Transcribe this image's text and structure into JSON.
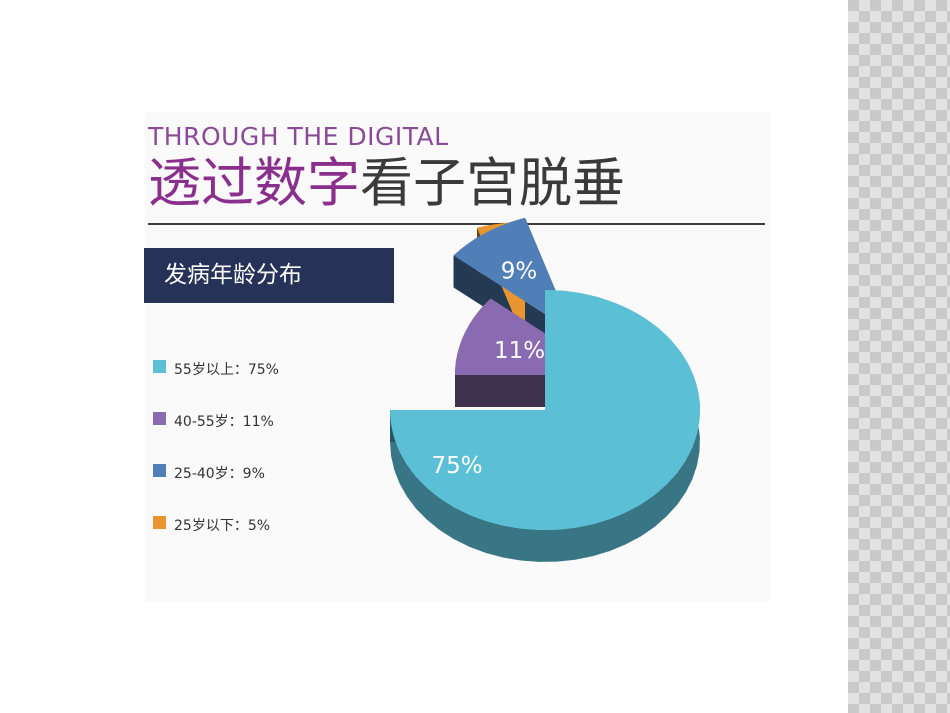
{
  "header": {
    "kicker": "THROUGH THE DIGITAL",
    "title_accent": "透过数字",
    "title_rest": "看子宫脱垂"
  },
  "subtitle": "发病年龄分布",
  "legend": [
    {
      "label": "55岁以上：75%",
      "color": "#5bbfd6"
    },
    {
      "label": "40-55岁：11%",
      "color": "#8a6ab0"
    },
    {
      "label": "25-40岁：9%",
      "color": "#4f7fb6"
    },
    {
      "label": "25岁以下：5%",
      "color": "#e8952f"
    }
  ],
  "chart_data": {
    "type": "pie",
    "title": "发病年龄分布",
    "categories": [
      "55岁以上",
      "40-55岁",
      "25-40岁",
      "25岁以下"
    ],
    "values": [
      75,
      11,
      9,
      5
    ],
    "labels": [
      "75%",
      "11%",
      "9%",
      "5%"
    ],
    "colors": [
      "#5bbfd6",
      "#8a6ab0",
      "#4f7fb6",
      "#e8952f"
    ],
    "legend": "left"
  }
}
